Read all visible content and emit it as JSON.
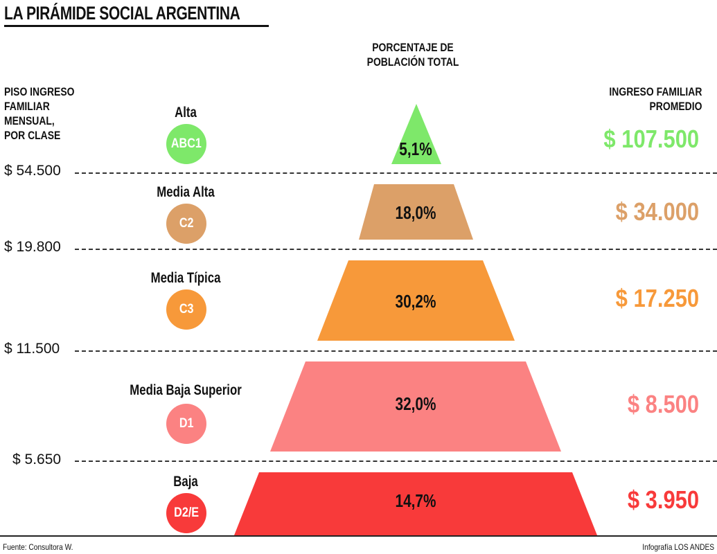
{
  "title": "LA PIRÁMIDE SOCIAL ARGENTINA",
  "headers": {
    "left": [
      "PISO INGRESO",
      "FAMILIAR",
      "MENSUAL,",
      "POR CLASE"
    ],
    "center": [
      "PORCENTAJE DE",
      "POBLACIÓN TOTAL"
    ],
    "right": [
      "INGRESO FAMILIAR",
      "PROMEDIO"
    ]
  },
  "thresholds": [
    "$ 54.500",
    "$ 19.800",
    "$ 11.500",
    "$ 5.650"
  ],
  "classes": [
    {
      "name": "Alta",
      "code": "ABC1",
      "percent": "5,1%",
      "income": "$ 107.500",
      "color": "#7ee86a"
    },
    {
      "name": "Media Alta",
      "code": "C2",
      "percent": "18,0%",
      "income": "$ 34.000",
      "color": "#dca068"
    },
    {
      "name": "Media Típica",
      "code": "C3",
      "percent": "30,2%",
      "income": "$ 17.250",
      "color": "#f7993a"
    },
    {
      "name": "Media Baja Superior",
      "code": "D1",
      "percent": "32,0%",
      "income": "$ 8.500",
      "color": "#fb8282"
    },
    {
      "name": "Baja",
      "code": "D2/E",
      "percent": "14,7%",
      "income": "$ 3.950",
      "color": "#f83a3a"
    }
  ],
  "footer": {
    "source": "Fuente: Consultora W.",
    "credit": "Infografía LOS ANDES"
  }
}
